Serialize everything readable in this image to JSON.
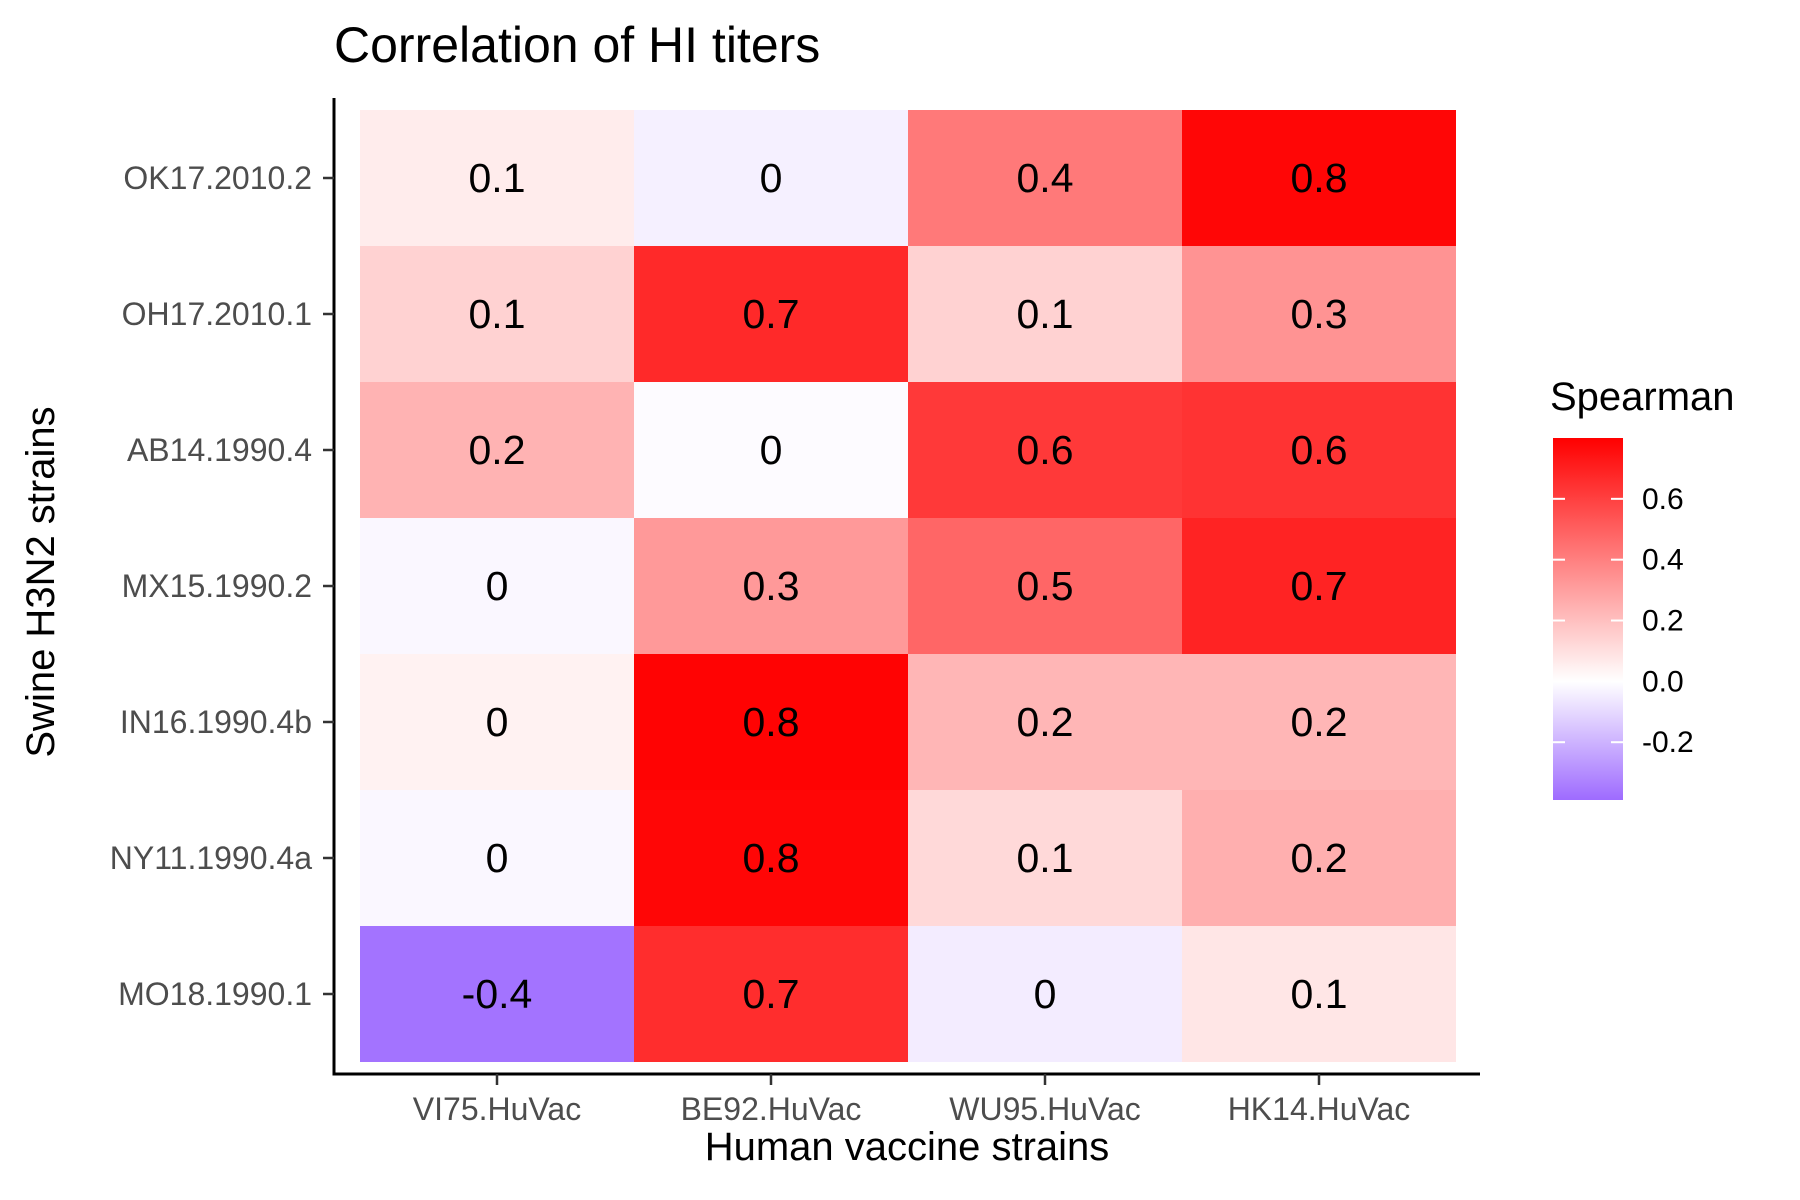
{
  "chart_data": {
    "type": "heatmap",
    "title": "Correlation of HI titers",
    "xlabel": "Human vaccine strains",
    "ylabel": "Swine H3N2 strains",
    "x_categories": [
      "VI75.HuVac",
      "BE92.HuVac",
      "WU95.HuVac",
      "HK14.HuVac"
    ],
    "y_categories": [
      "OK17.2010.2",
      "OH17.2010.1",
      "AB14.1990.4",
      "MX15.1990.2",
      "IN16.1990.4b",
      "NY11.1990.4a",
      "MO18.1990.1"
    ],
    "values": [
      [
        0.06,
        -0.04,
        0.42,
        0.78
      ],
      [
        0.14,
        0.67,
        0.14,
        0.34
      ],
      [
        0.24,
        -0.01,
        0.62,
        0.64
      ],
      [
        -0.02,
        0.32,
        0.48,
        0.69
      ],
      [
        0.04,
        0.79,
        0.23,
        0.23
      ],
      [
        -0.02,
        0.78,
        0.12,
        0.25
      ],
      [
        -0.37,
        0.66,
        -0.05,
        0.08
      ]
    ],
    "labels": [
      [
        "0.1",
        "0",
        "0.4",
        "0.8"
      ],
      [
        "0.1",
        "0.7",
        "0.1",
        "0.3"
      ],
      [
        "0.2",
        "0",
        "0.6",
        "0.6"
      ],
      [
        "0",
        "0.3",
        "0.5",
        "0.7"
      ],
      [
        "0",
        "0.8",
        "0.2",
        "0.2"
      ],
      [
        "0",
        "0.8",
        "0.1",
        "0.2"
      ],
      [
        "-0.4",
        "0.7",
        "0",
        "0.1"
      ]
    ],
    "legend": {
      "title": "Spearman",
      "position": "right",
      "ticks": [
        0.6,
        0.4,
        0.2,
        0.0,
        -0.2
      ],
      "tick_labels": [
        "0.6",
        "0.4",
        "0.2",
        "0.0",
        "-0.2"
      ],
      "range": [
        -0.39,
        0.8
      ],
      "low_color": "#9E6BFF",
      "mid_color": "#FFFFFF",
      "high_color": "#FF0000"
    }
  }
}
